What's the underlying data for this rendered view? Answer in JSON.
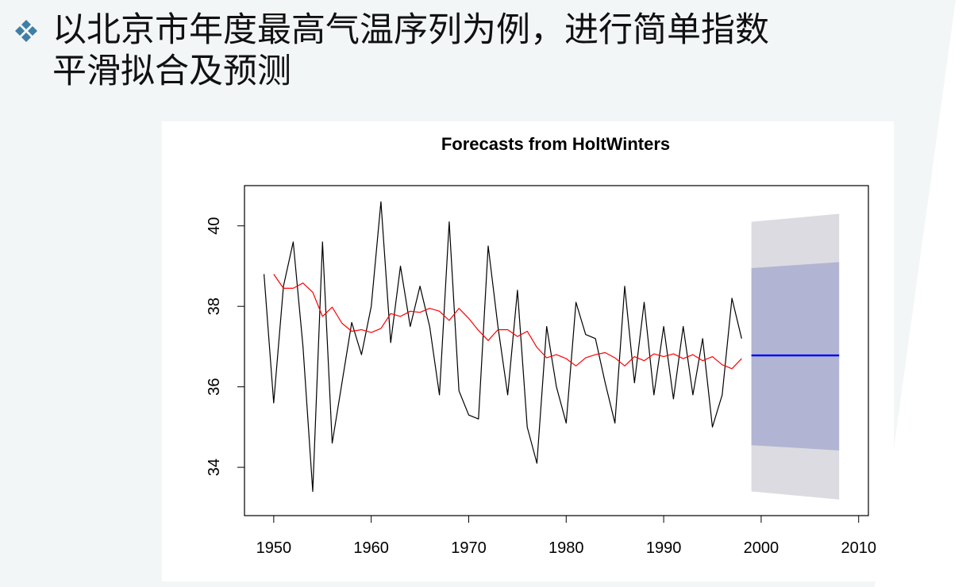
{
  "slide": {
    "title_line1": "以北京市年度最高气温序列为例，进行简单指数",
    "title_line2": "平滑拟合及预测",
    "bullet_icon": "diamond-cluster-icon"
  },
  "colors": {
    "observed": "#000000",
    "fitted": "#ff0000",
    "forecast": "#0000ff",
    "band80": "#b1b5d3",
    "band95": "#dcdbe1"
  },
  "chart_data": {
    "type": "line",
    "title": "Forecasts from HoltWinters",
    "xlabel": "",
    "ylabel": "",
    "xlim": [
      1947,
      2011
    ],
    "ylim": [
      32.8,
      41.0
    ],
    "x_ticks": [
      1950,
      1960,
      1970,
      1980,
      1990,
      2000,
      2010
    ],
    "y_ticks": [
      34,
      36,
      38,
      40
    ],
    "series": [
      {
        "x": [
          1949,
          1950,
          1951,
          1952,
          1953,
          1954,
          1955,
          1956,
          1957,
          1958,
          1959,
          1960,
          1961,
          1962,
          1963,
          1964,
          1965,
          1966,
          1967,
          1968,
          1969,
          1970,
          1971,
          1972,
          1973,
          1974,
          1975,
          1976,
          1977,
          1978,
          1979,
          1980,
          1981,
          1982,
          1983,
          1984,
          1985,
          1986,
          1987,
          1988,
          1989,
          1990,
          1991,
          1992,
          1993,
          1994,
          1995,
          1996,
          1997,
          1998
        ],
        "values": [
          38.8,
          35.6,
          38.5,
          39.6,
          37.0,
          33.4,
          39.6,
          34.6,
          36.1,
          37.6,
          36.8,
          38.0,
          40.6,
          37.1,
          39.0,
          37.5,
          38.5,
          37.5,
          35.8,
          40.1,
          35.9,
          35.3,
          35.2,
          39.5,
          37.5,
          35.8,
          38.4,
          35.0,
          34.1,
          37.5,
          36.0,
          35.1,
          38.1,
          37.3,
          37.2,
          36.1,
          35.1,
          38.5,
          36.1,
          38.1,
          35.8,
          37.5,
          35.7,
          37.5,
          35.8,
          37.2,
          35.0,
          35.8,
          38.2,
          37.2
        ]
      },
      {
        "x": [
          1950,
          1951,
          1952,
          1953,
          1954,
          1955,
          1956,
          1957,
          1958,
          1959,
          1960,
          1961,
          1962,
          1963,
          1964,
          1965,
          1966,
          1967,
          1968,
          1969,
          1970,
          1971,
          1972,
          1973,
          1974,
          1975,
          1976,
          1977,
          1978,
          1979,
          1980,
          1981,
          1982,
          1983,
          1984,
          1985,
          1986,
          1987,
          1988,
          1989,
          1990,
          1991,
          1992,
          1993,
          1994,
          1995,
          1996,
          1997,
          1998
        ],
        "values": [
          38.8,
          38.45,
          38.45,
          38.58,
          38.35,
          37.75,
          37.98,
          37.58,
          37.38,
          37.42,
          37.35,
          37.45,
          37.82,
          37.75,
          37.88,
          37.85,
          37.95,
          37.88,
          37.65,
          37.95,
          37.7,
          37.4,
          37.15,
          37.42,
          37.42,
          37.25,
          37.38,
          36.98,
          36.72,
          36.8,
          36.7,
          36.52,
          36.72,
          36.8,
          36.85,
          36.72,
          36.52,
          36.75,
          36.65,
          36.82,
          36.75,
          36.82,
          36.7,
          36.8,
          36.65,
          36.75,
          36.55,
          36.45,
          36.7
        ]
      },
      {
        "x": [
          1999,
          2008
        ],
        "values": [
          36.78,
          36.78
        ]
      }
    ],
    "bands": {
      "x": [
        1999,
        2008
      ],
      "lo95": [
        33.4,
        33.2
      ],
      "hi95": [
        40.1,
        40.3
      ],
      "lo80": [
        34.55,
        34.42
      ],
      "hi80": [
        38.95,
        39.1
      ]
    }
  }
}
